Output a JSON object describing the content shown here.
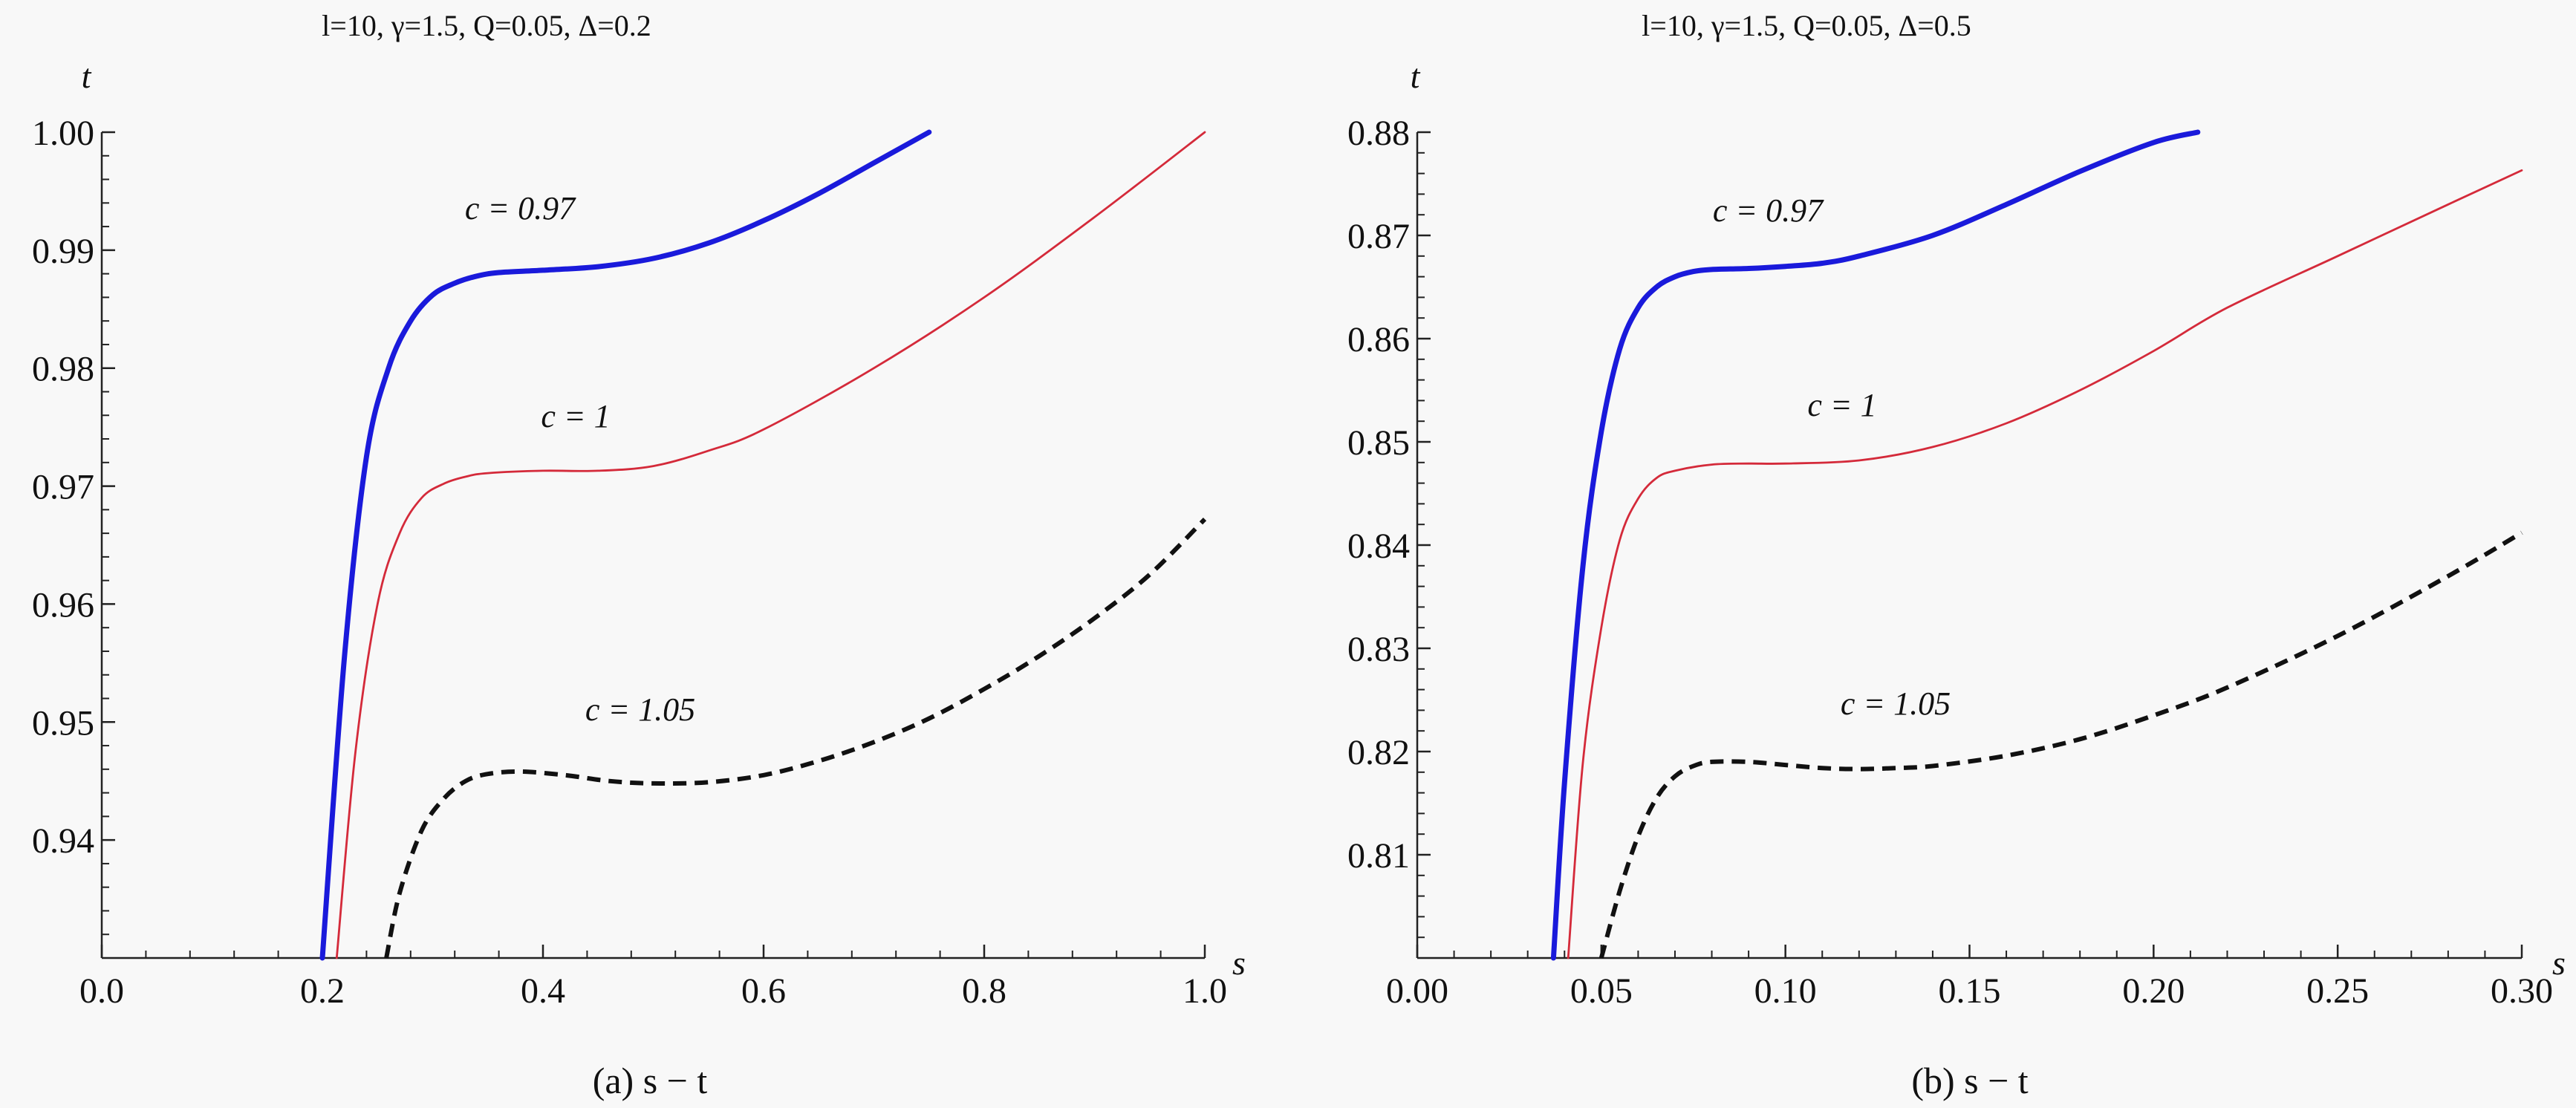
{
  "chart_data": [
    {
      "type": "line",
      "title": "l=10, γ=1.5, Q=0.05, Δ=0.2",
      "xlabel": "s",
      "ylabel": "t",
      "caption": "(a) s − t",
      "xlim": [
        0.0,
        1.0
      ],
      "ylim": [
        0.93,
        1.0
      ],
      "xticks": [
        "0.0",
        "0.2",
        "0.4",
        "0.6",
        "0.8",
        "1.0"
      ],
      "yticks": [
        "0.94",
        "0.95",
        "0.96",
        "0.97",
        "0.98",
        "0.99",
        "1.00"
      ],
      "series": [
        {
          "name": "c = 0.97",
          "color": "#1a1adb",
          "style": "solid-thick",
          "x": [
            0.2,
            0.22,
            0.24,
            0.26,
            0.28,
            0.3,
            0.32,
            0.34,
            0.36,
            0.4,
            0.45,
            0.5,
            0.55,
            0.6,
            0.65,
            0.7,
            0.75
          ],
          "y": [
            0.93,
            0.9555,
            0.9725,
            0.98,
            0.984,
            0.9862,
            0.9872,
            0.9878,
            0.9881,
            0.9883,
            0.9886,
            0.9893,
            0.9906,
            0.9925,
            0.9948,
            0.9974,
            1.0
          ]
        },
        {
          "name": "c = 1",
          "color": "#d42a3a",
          "style": "solid-thin",
          "x": [
            0.213,
            0.23,
            0.25,
            0.27,
            0.29,
            0.31,
            0.33,
            0.35,
            0.4,
            0.45,
            0.5,
            0.55,
            0.6,
            0.7,
            0.8,
            0.9,
            1.0
          ],
          "y": [
            0.93,
            0.9475,
            0.96,
            0.966,
            0.969,
            0.9702,
            0.9708,
            0.9711,
            0.9713,
            0.9713,
            0.9717,
            0.973,
            0.9748,
            0.98,
            0.986,
            0.9928,
            1.0
          ]
        },
        {
          "name": "c = 1.05",
          "color": "#111111",
          "style": "dashed",
          "x": [
            0.258,
            0.27,
            0.29,
            0.31,
            0.33,
            0.35,
            0.38,
            0.42,
            0.46,
            0.5,
            0.55,
            0.6,
            0.65,
            0.7,
            0.75,
            0.8,
            0.85,
            0.9,
            0.95,
            1.0
          ],
          "y": [
            0.93,
            0.9355,
            0.9408,
            0.9435,
            0.945,
            0.9456,
            0.9458,
            0.9455,
            0.945,
            0.9448,
            0.9449,
            0.9455,
            0.9467,
            0.9483,
            0.9503,
            0.9528,
            0.9556,
            0.9588,
            0.9625,
            0.9672
          ]
        }
      ]
    },
    {
      "type": "line",
      "title": "l=10, γ=1.5, Q=0.05, Δ=0.5",
      "xlabel": "s",
      "ylabel": "t",
      "caption": "(b) s − t",
      "xlim": [
        0.0,
        0.3
      ],
      "ylim": [
        0.8,
        0.88
      ],
      "xticks": [
        "0.00",
        "0.05",
        "0.10",
        "0.15",
        "0.20",
        "0.25",
        "0.30"
      ],
      "yticks": [
        "0.81",
        "0.82",
        "0.83",
        "0.84",
        "0.85",
        "0.86",
        "0.87",
        "0.88"
      ],
      "series": [
        {
          "name": "c = 0.97",
          "color": "#1a1adb",
          "style": "solid-thick",
          "x": [
            0.037,
            0.04,
            0.045,
            0.05,
            0.055,
            0.06,
            0.065,
            0.07,
            0.075,
            0.08,
            0.09,
            0.1,
            0.11,
            0.12,
            0.14,
            0.16,
            0.18,
            0.2,
            0.212
          ],
          "y": [
            0.8,
            0.817,
            0.838,
            0.851,
            0.859,
            0.863,
            0.865,
            0.866,
            0.8665,
            0.8667,
            0.8668,
            0.867,
            0.8673,
            0.868,
            0.87,
            0.873,
            0.8762,
            0.879,
            0.88
          ]
        },
        {
          "name": "c = 1",
          "color": "#d42a3a",
          "style": "solid-thin",
          "x": [
            0.041,
            0.045,
            0.05,
            0.055,
            0.06,
            0.065,
            0.07,
            0.08,
            0.09,
            0.1,
            0.12,
            0.14,
            0.16,
            0.18,
            0.2,
            0.22,
            0.25,
            0.28,
            0.3
          ],
          "y": [
            0.8,
            0.819,
            0.832,
            0.8405,
            0.8445,
            0.8465,
            0.8472,
            0.8478,
            0.8479,
            0.8479,
            0.8482,
            0.8495,
            0.8518,
            0.855,
            0.8588,
            0.863,
            0.868,
            0.873,
            0.8763
          ]
        },
        {
          "name": "c = 1.05",
          "color": "#111111",
          "style": "dashed",
          "x": [
            0.05,
            0.055,
            0.06,
            0.065,
            0.07,
            0.075,
            0.08,
            0.09,
            0.1,
            0.11,
            0.12,
            0.13,
            0.14,
            0.16,
            0.18,
            0.2,
            0.22,
            0.25,
            0.28,
            0.3
          ],
          "y": [
            0.8,
            0.8065,
            0.8118,
            0.8155,
            0.8176,
            0.8186,
            0.819,
            0.819,
            0.8187,
            0.8184,
            0.8183,
            0.8184,
            0.8186,
            0.8196,
            0.8212,
            0.8235,
            0.8262,
            0.8312,
            0.837,
            0.8412
          ]
        }
      ]
    }
  ]
}
